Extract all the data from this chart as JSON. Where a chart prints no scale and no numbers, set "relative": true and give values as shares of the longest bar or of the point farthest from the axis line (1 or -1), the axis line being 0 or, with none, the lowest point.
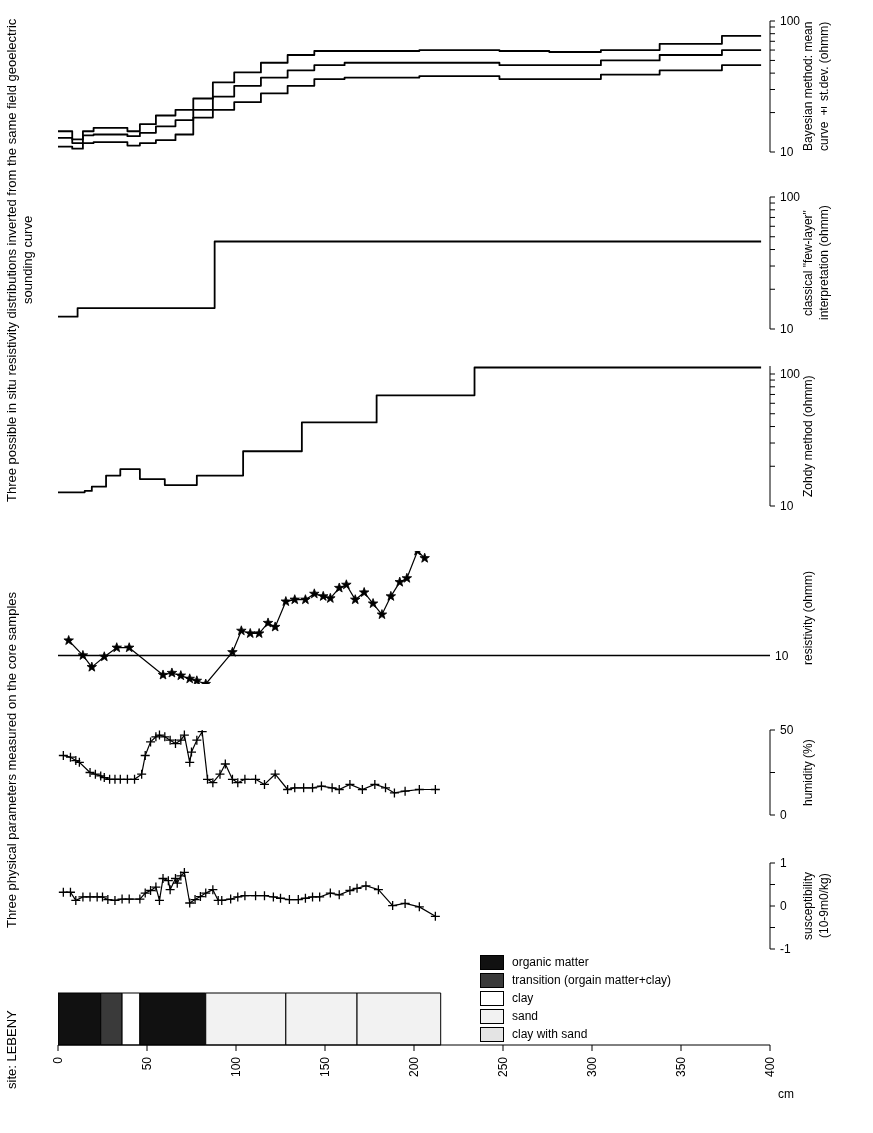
{
  "chart_data": [
    {
      "type": "step",
      "ylabel": "Bayesian method: mean curve ± st.dev. (ohmm)",
      "log": "y",
      "xlim": [
        0,
        400
      ],
      "ylim": [
        10,
        100
      ],
      "tick_labels": "y",
      "yticks": [
        10,
        {
          "value": 20,
          "label": null
        },
        {
          "value": 30,
          "label": null
        },
        {
          "value": 40,
          "label": null
        },
        {
          "value": 50,
          "label": null
        },
        {
          "value": 60,
          "label": null
        },
        {
          "value": 70,
          "label": null
        },
        {
          "value": 80,
          "label": null
        },
        {
          "value": 90,
          "label": null
        },
        100
      ],
      "x": [
        0,
        8,
        14,
        20,
        39,
        46,
        55,
        66,
        76,
        87,
        99,
        114,
        129,
        144,
        161,
        203,
        248,
        276,
        305,
        338,
        373,
        395
      ],
      "series": [
        {
          "color": "#000000",
          "values": [
            12.8,
            11.7,
            13.4,
            13.6,
            13.2,
            14,
            15.7,
            17.5,
            21,
            26.5,
            32,
            37,
            42,
            46,
            48,
            48,
            46,
            46,
            50,
            55,
            60,
            60
          ]
        },
        {
          "color": "#000000",
          "values": [
            14.4,
            12.5,
            14.4,
            15.3,
            14.4,
            16.3,
            19,
            21,
            25.6,
            34,
            40.5,
            48,
            55,
            59,
            59,
            60,
            59,
            58,
            60,
            67,
            77,
            77
          ]
        },
        {
          "color": "#000000",
          "values": [
            11,
            10.6,
            11.7,
            11.9,
            11.2,
            11.7,
            12.3,
            13.6,
            18.3,
            21,
            24,
            28,
            32,
            36,
            37,
            38,
            36,
            36,
            39,
            42,
            46,
            46
          ]
        }
      ]
    },
    {
      "type": "step",
      "title": "Three possible in situ resistivity distributions inverted from the same field geoelectric sounding curve",
      "ylabel": "classical \"few-layer\" interpretation (ohmm)",
      "log": "y",
      "xlim": [
        0,
        400
      ],
      "ylim": [
        10,
        100
      ],
      "tick_labels": "y",
      "yticks": [
        10,
        {
          "value": 20,
          "label": null
        },
        {
          "value": 30,
          "label": null
        },
        {
          "value": 40,
          "label": null
        },
        {
          "value": 50,
          "label": null
        },
        {
          "value": 60,
          "label": null
        },
        {
          "value": 70,
          "label": null
        },
        {
          "value": 80,
          "label": null
        },
        {
          "value": 90,
          "label": null
        },
        100
      ],
      "x": [
        0,
        11,
        88,
        395
      ],
      "series": [
        {
          "color": "#000000",
          "values": [
            12.4,
            14.4,
            46,
            46
          ]
        }
      ]
    },
    {
      "type": "step",
      "ylabel": "Zohdy method (ohmm)",
      "log": "y",
      "xlim": [
        0,
        400
      ],
      "ylim": [
        10,
        115
      ],
      "tick_labels": "y",
      "yticks": [
        10,
        {
          "value": 20,
          "label": null
        },
        {
          "value": 30,
          "label": null
        },
        {
          "value": 40,
          "label": null
        },
        {
          "value": 50,
          "label": null
        },
        {
          "value": 60,
          "label": null
        },
        {
          "value": 70,
          "label": null
        },
        {
          "value": 80,
          "label": null
        },
        {
          "value": 90,
          "label": null
        },
        100
      ],
      "x": [
        0,
        15,
        19,
        27,
        35,
        46,
        60,
        78,
        104,
        137,
        179,
        234,
        395
      ],
      "series": [
        {
          "color": "#000000",
          "values": [
            12.7,
            13,
            14,
            17,
            19,
            16,
            14.4,
            17,
            26,
            43,
            69,
            112,
            112
          ]
        }
      ]
    },
    {
      "type": "line",
      "ylabel": "resistivity (ohmm)",
      "relative": true,
      "xlim": [
        0,
        400
      ],
      "tick_labels": "y",
      "marker": "star",
      "ref_lines": [
        {
          "axis": "y",
          "value": 0.215
        }
      ],
      "annotations": [
        "10"
      ],
      "x": [
        6,
        14,
        19,
        26,
        33,
        40,
        59,
        64,
        69,
        74,
        78,
        83,
        98,
        103,
        108,
        113,
        118,
        122,
        128,
        133,
        139,
        144,
        149,
        153,
        158,
        162,
        167,
        172,
        177,
        182,
        187,
        192,
        196,
        202,
        206
      ],
      "series": [
        {
          "color": "#000000",
          "values": [
            0.327,
            0.215,
            0.127,
            0.205,
            0.273,
            0.273,
            0.068,
            0.083,
            0.063,
            0.039,
            0.024,
            0,
            0.239,
            0.4,
            0.38,
            0.38,
            0.459,
            0.429,
            0.62,
            0.634,
            0.634,
            0.678,
            0.659,
            0.644,
            0.722,
            0.746,
            0.634,
            0.688,
            0.605,
            0.522,
            0.659,
            0.766,
            0.795,
            1,
            0.946
          ]
        }
      ]
    },
    {
      "type": "line",
      "title": "Three physical parameters measured on the core samples",
      "ylabel": "humidity (%)",
      "xlim": [
        0,
        400
      ],
      "ylim": [
        0,
        50
      ],
      "tick_labels": "y",
      "marker": "cross",
      "yticks": [
        0,
        {
          "value": 25,
          "label": null
        },
        50
      ],
      "x": [
        3,
        7,
        10,
        12,
        18,
        21,
        24,
        26,
        29,
        32,
        35,
        39,
        43,
        47,
        49,
        52,
        55,
        57,
        60,
        63,
        66,
        69,
        71,
        74,
        75,
        78,
        81,
        84,
        87,
        91,
        94,
        98,
        101,
        105,
        111,
        116,
        122,
        129,
        133,
        138,
        143,
        148,
        154,
        158,
        164,
        171,
        178,
        184,
        189,
        195,
        203,
        212
      ],
      "series": [
        {
          "color": "#000000",
          "values": [
            35,
            34,
            32,
            31,
            25,
            24,
            23,
            22,
            21,
            21,
            21,
            21,
            21,
            24,
            35,
            43,
            46,
            47,
            46,
            44,
            42,
            44,
            47,
            31,
            37,
            44,
            49,
            21,
            19,
            24,
            30,
            21,
            19,
            21,
            21,
            18,
            24,
            15,
            16,
            16,
            16,
            17,
            16,
            15,
            18,
            15,
            18,
            16,
            13,
            14,
            15,
            15
          ]
        }
      ]
    },
    {
      "type": "line",
      "ylabel": "susceptibility (10-9m0/kg)",
      "xlim": [
        0,
        400
      ],
      "ylim": [
        -1,
        1
      ],
      "tick_labels": "y",
      "marker": "cross",
      "yticks": [
        -1,
        {
          "value": -0.5,
          "label": null
        },
        0,
        {
          "value": 0.5,
          "label": null
        },
        1
      ],
      "x": [
        3,
        7,
        10,
        14,
        18,
        22,
        25,
        28,
        32,
        36,
        40,
        46,
        49,
        52,
        55,
        57,
        59,
        62,
        63,
        66,
        67,
        69,
        71,
        74,
        77,
        80,
        83,
        87,
        90,
        92,
        97,
        101,
        105,
        111,
        116,
        121,
        125,
        130,
        135,
        139,
        143,
        147,
        153,
        158,
        164,
        168,
        173,
        180,
        188,
        195,
        203,
        212
      ],
      "series": [
        {
          "color": "#000000",
          "values": [
            0.32,
            0.32,
            0.13,
            0.21,
            0.21,
            0.21,
            0.21,
            0.15,
            0.13,
            0.16,
            0.16,
            0.16,
            0.3,
            0.36,
            0.44,
            0.13,
            0.64,
            0.59,
            0.38,
            0.64,
            0.53,
            0.7,
            0.78,
            0.07,
            0.15,
            0.22,
            0.3,
            0.38,
            0.13,
            0.13,
            0.16,
            0.21,
            0.24,
            0.24,
            0.24,
            0.21,
            0.18,
            0.15,
            0.15,
            0.18,
            0.21,
            0.21,
            0.3,
            0.26,
            0.36,
            0.41,
            0.47,
            0.38,
            0.01,
            0.06,
            -0.02,
            -0.24
          ]
        }
      ]
    },
    {
      "type": "bar",
      "title": "site: LEBENY",
      "orientation": "horizontal",
      "stacked": true,
      "xlabel": "cm",
      "xlim": [
        0,
        400
      ],
      "xticks": [
        0,
        50,
        100,
        150,
        200,
        250,
        300,
        350,
        400
      ],
      "legend": "right",
      "categories": [
        null
      ],
      "series": [
        {
          "name": "organic matter",
          "color": "#111111",
          "values": [
            24
          ]
        },
        {
          "name": "transition (orgain matter+clay)",
          "color": "#3a3a3a",
          "values": [
            12
          ]
        },
        {
          "name": "clay",
          "color": "#ffffff",
          "values": [
            10
          ]
        },
        {
          "color": "#111111",
          "values": [
            37
          ]
        },
        {
          "name": "sand",
          "color": "#f2f2f2",
          "values": [
            45
          ]
        },
        {
          "color": "#f2f2f2",
          "values": [
            40
          ]
        },
        {
          "color": "#f2f2f2",
          "values": [
            47
          ]
        },
        {
          "name": "clay with sand",
          "color": "#e4e4e4",
          "values": [
            null
          ]
        }
      ]
    }
  ]
}
